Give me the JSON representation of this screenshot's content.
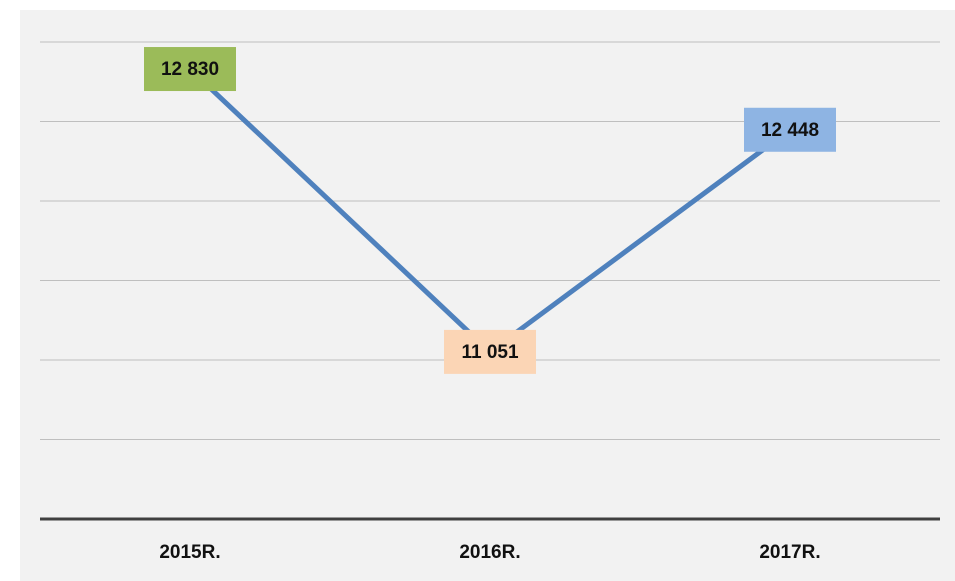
{
  "chart_data": {
    "type": "line",
    "categories": [
      "2015R.",
      "2016R.",
      "2017R."
    ],
    "series": [
      {
        "color": "#4f81bd",
        "values": [
          12830,
          11051,
          12448
        ],
        "value_labels": [
          "12 830",
          "11 051",
          "12 448"
        ],
        "label_colors": [
          "#9bbb59",
          "#fbd5b5",
          "#8eb4e3"
        ]
      }
    ],
    "ylim": [
      10000,
      13000
    ],
    "yticks": [
      10000,
      10500,
      11000,
      11500,
      12000,
      12500,
      13000
    ],
    "grid": true
  }
}
